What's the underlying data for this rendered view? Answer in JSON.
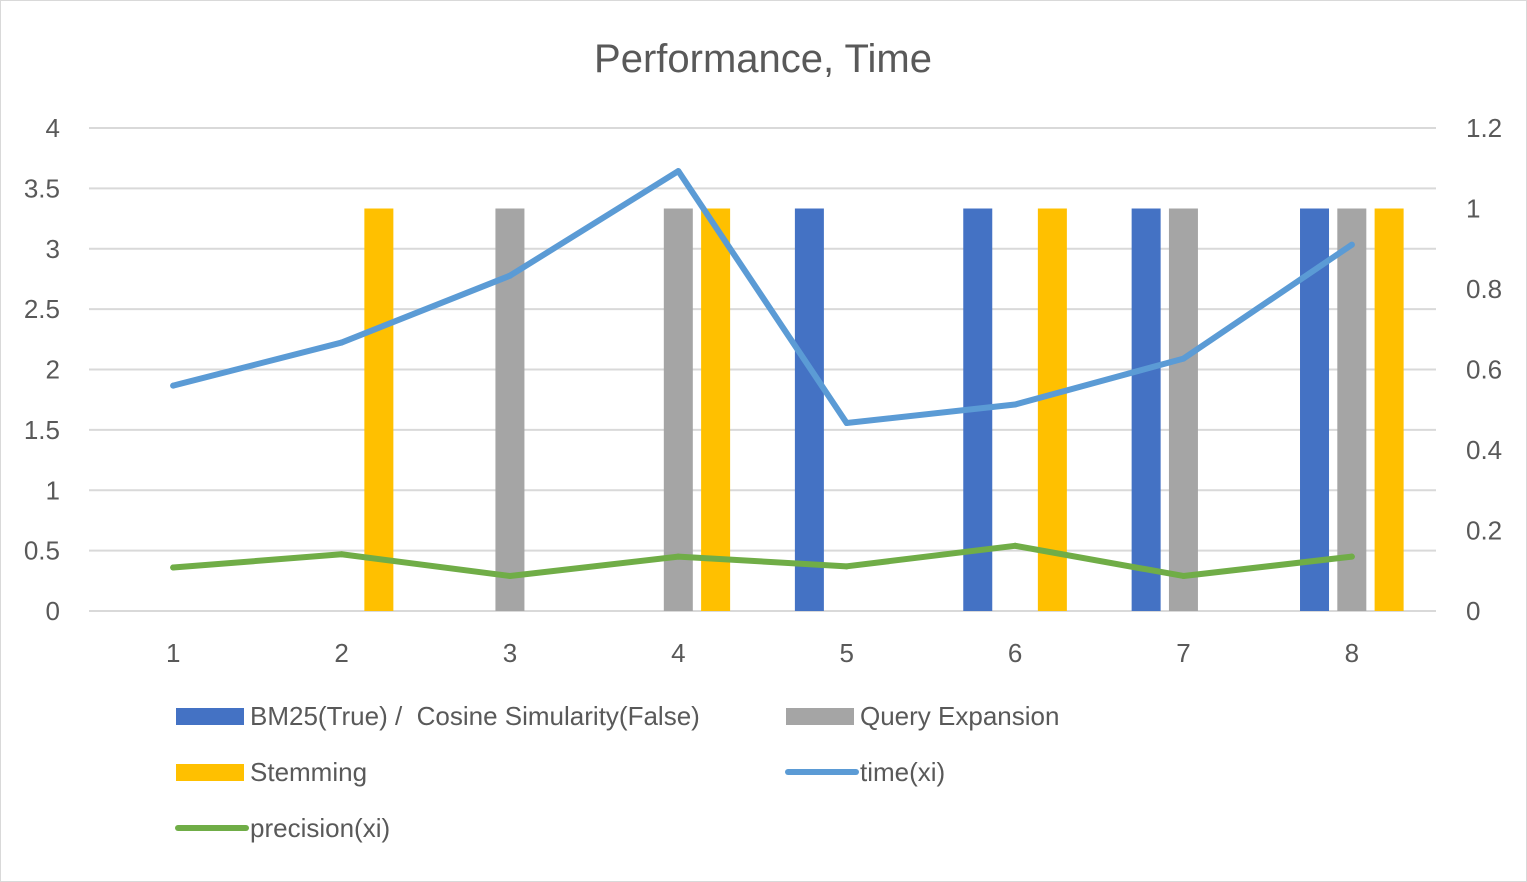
{
  "chart_data": {
    "type": "bar",
    "title": "Performance, Time",
    "categories": [
      "1",
      "2",
      "3",
      "4",
      "5",
      "6",
      "7",
      "8"
    ],
    "y_left": {
      "ylim": [
        0,
        4
      ],
      "ticks": [
        "0",
        "0.5",
        "1",
        "1.5",
        "2",
        "2.5",
        "3",
        "3.5",
        "4"
      ]
    },
    "y_right": {
      "ylim": [
        0,
        1.2
      ],
      "ticks": [
        "0",
        "0.2",
        "0.4",
        "0.6",
        "0.8",
        "1",
        "1.2"
      ]
    },
    "grid": true,
    "legend_position": "bottom",
    "series": [
      {
        "name": "BM25(True) /  Cosine Simularity(False)",
        "kind": "bar",
        "axis": "right",
        "color": "#4472C4",
        "values": [
          0,
          0,
          0,
          0,
          1,
          1,
          1,
          1
        ]
      },
      {
        "name": "Query Expansion",
        "kind": "bar",
        "axis": "right",
        "color": "#A5A5A5",
        "values": [
          0,
          0,
          1,
          1,
          0,
          0,
          1,
          1
        ]
      },
      {
        "name": "Stemming",
        "kind": "bar",
        "axis": "right",
        "color": "#FFC000",
        "values": [
          0,
          1,
          0,
          1,
          0,
          1,
          0,
          1
        ]
      },
      {
        "name": "time(xi)",
        "kind": "line",
        "axis": "right",
        "color": "#5B9BD5",
        "values": [
          0.56,
          0.667,
          0.833,
          1.093,
          0.467,
          0.513,
          0.627,
          0.91
        ]
      },
      {
        "name": "precision(xi)",
        "kind": "line",
        "axis": "left",
        "color": "#70AD47",
        "values": [
          0.36,
          0.47,
          0.29,
          0.45,
          0.37,
          0.54,
          0.29,
          0.45
        ]
      }
    ]
  }
}
